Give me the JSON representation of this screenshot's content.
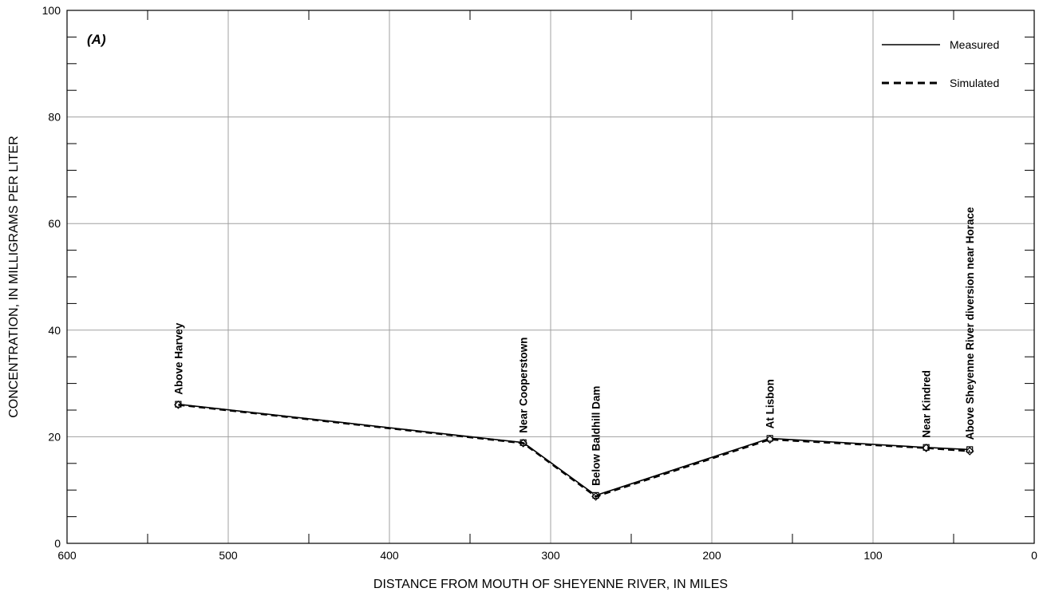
{
  "chart_data": {
    "type": "line",
    "panel_label": "(A)",
    "xlabel": "DISTANCE FROM MOUTH OF SHEYENNE RIVER, IN MILES",
    "ylabel": "CONCENTRATION, IN MILLIGRAMS PER LITER",
    "xlim": [
      600,
      0
    ],
    "ylim": [
      0,
      100
    ],
    "x_axis_reversed": true,
    "x_ticks": [
      600,
      500,
      400,
      300,
      200,
      100,
      0
    ],
    "x_tick_labels": [
      "600",
      "500",
      "400",
      "300",
      "200",
      "100",
      "0"
    ],
    "y_ticks": [
      0,
      20,
      40,
      60,
      80,
      100
    ],
    "y_tick_labels": [
      "0",
      "20",
      "40",
      "60",
      "80",
      "100"
    ],
    "grid": true,
    "legend_position": "top-right",
    "series": [
      {
        "name": "Measured",
        "line_style": "solid",
        "marker": "square",
        "x": [
          531,
          317,
          272,
          164,
          67,
          40
        ],
        "y": [
          26.1,
          18.9,
          9.0,
          19.7,
          18.0,
          17.6
        ]
      },
      {
        "name": "Simulated",
        "line_style": "dashed",
        "marker": "diamond",
        "x": [
          531,
          317,
          272,
          164,
          67,
          40
        ],
        "y": [
          26.0,
          18.8,
          8.8,
          19.5,
          17.9,
          17.3
        ]
      }
    ],
    "station_labels": [
      {
        "text": "Above Harvey",
        "x": 531
      },
      {
        "text": "Near Cooperstown",
        "x": 317
      },
      {
        "text": "Below Baldhill Dam",
        "x": 272
      },
      {
        "text": "At Lisbon",
        "x": 164
      },
      {
        "text": "Near Kindred",
        "x": 67
      },
      {
        "text": "Above Sheyenne River diversion near Horace",
        "x": 40
      }
    ],
    "colors": {
      "line": "#000000",
      "grid": "#a0a0a0",
      "background": "#ffffff"
    }
  }
}
